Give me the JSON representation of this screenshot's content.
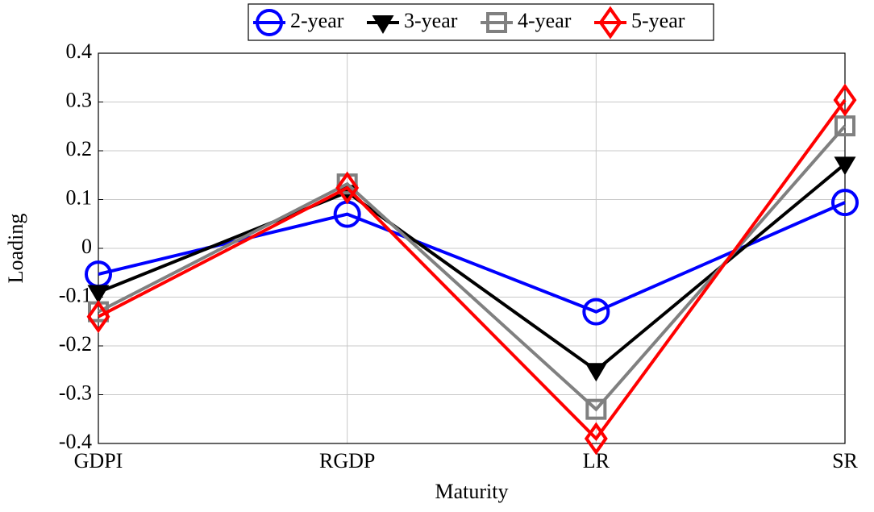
{
  "chart_data": {
    "type": "line",
    "xlabel": "Maturity",
    "ylabel": "Loading",
    "categories": [
      "GDPI",
      "RGDP",
      "LR",
      "SR"
    ],
    "ylim": [
      -0.4,
      0.4
    ],
    "yticks": [
      -0.4,
      -0.3,
      -0.2,
      -0.1,
      0,
      0.1,
      0.2,
      0.3,
      0.4
    ],
    "grid": true,
    "legend": "top",
    "series": [
      {
        "name": "2-year",
        "color": "#0000ff",
        "marker": "circle",
        "values": [
          -0.053,
          0.07,
          -0.13,
          0.094
        ]
      },
      {
        "name": "3-year",
        "color": "#000000",
        "marker": "triangle-down",
        "values": [
          -0.09,
          0.115,
          -0.25,
          0.173
        ]
      },
      {
        "name": "4-year",
        "color": "#808080",
        "marker": "square",
        "values": [
          -0.13,
          0.132,
          -0.33,
          0.251
        ]
      },
      {
        "name": "5-year",
        "color": "#ff0000",
        "marker": "diamond",
        "values": [
          -0.14,
          0.124,
          -0.39,
          0.304
        ]
      }
    ]
  }
}
